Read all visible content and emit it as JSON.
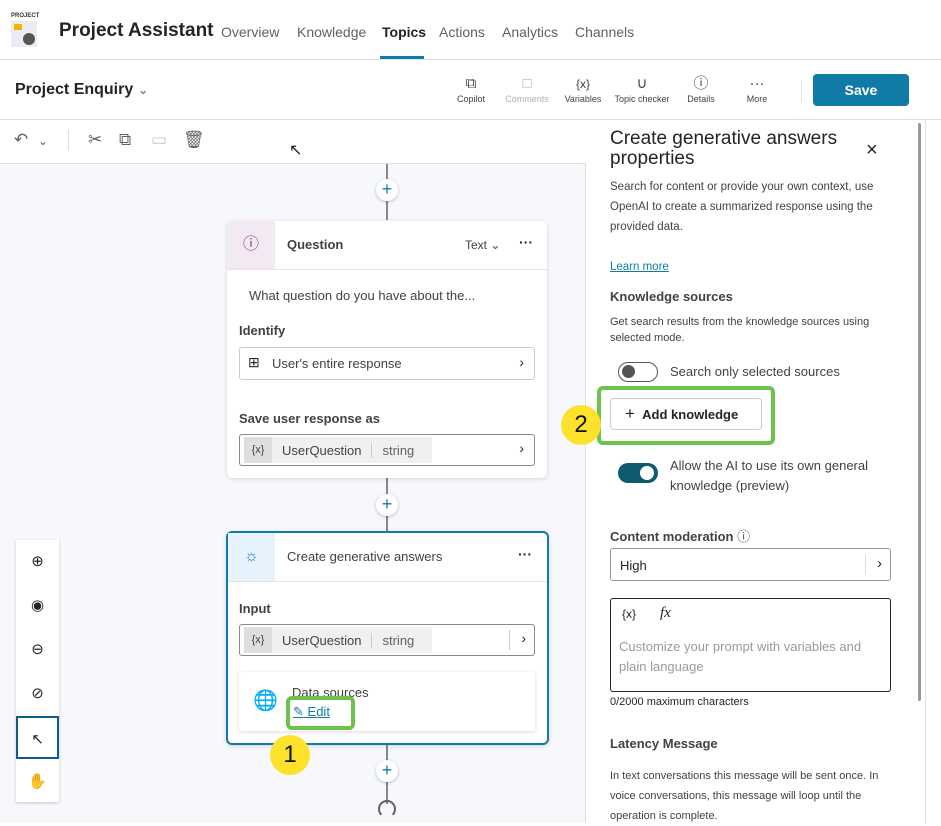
{
  "app": {
    "logo_text": "PROJECT",
    "title": "Project Assistant",
    "nav": [
      "Overview",
      "Knowledge",
      "Topics",
      "Actions",
      "Analytics",
      "Channels"
    ],
    "active_nav": "Topics",
    "accent": "#117ba8"
  },
  "topic": {
    "name": "Project Enquiry"
  },
  "toolbar": {
    "items": [
      {
        "label": "Copilot",
        "icon": "copilot-icon"
      },
      {
        "label": "Comments",
        "icon": "comment-icon",
        "disabled": true
      },
      {
        "label": "Variables",
        "icon": "variables-icon"
      },
      {
        "label": "Topic checker",
        "icon": "stethoscope-icon"
      },
      {
        "label": "Details",
        "icon": "info-icon"
      },
      {
        "label": "More",
        "icon": "more-icon"
      }
    ],
    "save": "Save"
  },
  "question_node": {
    "title": "Question",
    "type": "Text",
    "prompt": "What question do you have about the...",
    "identify_label": "Identify",
    "identify_value": "User's entire response",
    "save_label": "Save user response as",
    "var_icon": "{x}",
    "var_name": "UserQuestion",
    "var_type": "string"
  },
  "gen_node": {
    "title": "Create generative answers",
    "input_label": "Input",
    "var_icon": "{x}",
    "var_name": "UserQuestion",
    "var_type": "string",
    "data_sources": "Data sources",
    "edit": "Edit"
  },
  "callouts": {
    "one": "1",
    "two": "2"
  },
  "panel": {
    "title": "Create generative answers properties",
    "description": "Search for content or provide your own context, use OpenAI to create a summarized response using the provided data.",
    "learn_more": "Learn more",
    "knowledge_heading": "Knowledge sources",
    "knowledge_desc": "Get search results from the knowledge sources using selected mode.",
    "search_only_label": "Search only selected sources",
    "search_only_on": false,
    "add_knowledge": "Add knowledge",
    "allow_ai_label": "Allow the AI to use its own general knowledge (preview)",
    "allow_ai_on": true,
    "moderation_label": "Content moderation",
    "moderation_value": "High",
    "prompt_var_icon": "{x}",
    "prompt_fx_icon": "fx",
    "prompt_placeholder": "Customize your prompt with variables and plain language",
    "char_count": "0/2000 maximum characters",
    "latency_heading": "Latency Message",
    "latency_desc": "In text conversations this message will be sent once. In voice conversations, this message will loop until the operation is complete."
  }
}
